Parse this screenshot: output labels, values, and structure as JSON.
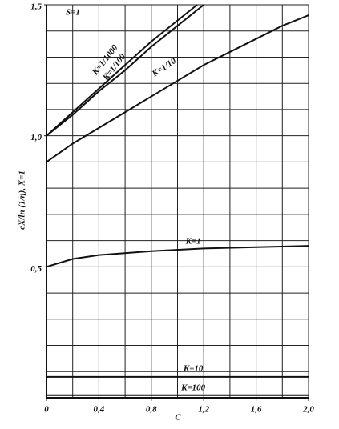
{
  "chart_data": {
    "type": "line",
    "xlabel": "C",
    "ylabel": "cX/ln (1/η), X=1",
    "annotation": "S=1",
    "xlim": [
      0,
      2.0
    ],
    "ylim": [
      0,
      1.5
    ],
    "xticks": [
      0,
      {
        "value": 0.4,
        "label": "0,4"
      },
      {
        "value": 0.8,
        "label": "0,8"
      },
      {
        "value": 1.2,
        "label": "1,2"
      },
      {
        "value": 1.6,
        "label": "1,6"
      },
      {
        "value": 2.0,
        "label": "2,0"
      }
    ],
    "yticks": [
      {
        "value": 0.5,
        "label": "0,5"
      },
      {
        "value": 1.0,
        "label": "1,0"
      },
      {
        "value": 1.5,
        "label": "1,5"
      }
    ],
    "xgrid": [
      0,
      0.2,
      0.4,
      0.6,
      0.8,
      1.0,
      1.2,
      1.4,
      1.6,
      1.8,
      2.0
    ],
    "ygrid": [
      0,
      0.1,
      0.2,
      0.3,
      0.4,
      0.5,
      0.6,
      0.7,
      0.8,
      0.9,
      1.0,
      1.1,
      1.2,
      1.3,
      1.4,
      1.5
    ],
    "grid": true,
    "series": [
      {
        "name": "K=1/1000",
        "color": "#111",
        "x": [
          0,
          0.2,
          0.4,
          0.6,
          0.8,
          1.0,
          1.15
        ],
        "values": [
          1.0,
          1.09,
          1.18,
          1.27,
          1.36,
          1.44,
          1.5
        ]
      },
      {
        "name": "K=1/100",
        "color": "#111",
        "x": [
          0,
          0.2,
          0.4,
          0.6,
          0.8,
          1.0,
          1.2
        ],
        "values": [
          1.0,
          1.08,
          1.17,
          1.25,
          1.34,
          1.42,
          1.5
        ]
      },
      {
        "name": "K=1/10",
        "color": "#111",
        "x": [
          0,
          0.2,
          0.4,
          0.6,
          0.8,
          1.0,
          1.2,
          1.4,
          1.6,
          1.8,
          2.0
        ],
        "values": [
          0.9,
          0.97,
          1.03,
          1.09,
          1.15,
          1.21,
          1.27,
          1.32,
          1.37,
          1.42,
          1.46
        ]
      },
      {
        "name": "K=1",
        "color": "#111",
        "x": [
          0,
          0.2,
          0.4,
          0.8,
          1.2,
          1.6,
          2.0
        ],
        "values": [
          0.5,
          0.53,
          0.545,
          0.56,
          0.57,
          0.575,
          0.58
        ]
      },
      {
        "name": "K=10",
        "color": "#111",
        "x": [
          0,
          2.0
        ],
        "values": [
          0.08,
          0.08
        ]
      },
      {
        "name": "K=100",
        "color": "#111",
        "x": [
          0,
          2.0
        ],
        "values": [
          0.01,
          0.01
        ]
      }
    ]
  }
}
